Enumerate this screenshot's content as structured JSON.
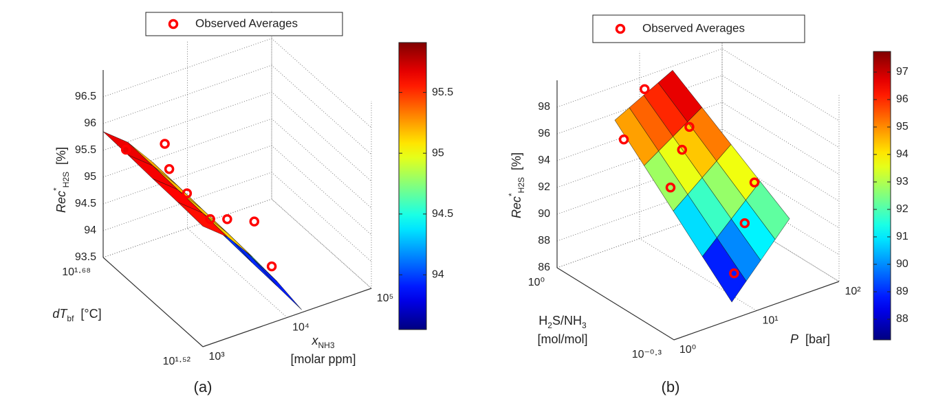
{
  "chart_data": [
    {
      "type": "surface3d",
      "panel_label": "(a)",
      "zlabel": [
        [
          {
            "text": "Rec",
            "style": "italic"
          },
          {
            "text": "*",
            "style": "sup"
          },
          {
            "text": "H2S",
            "style": "sub"
          },
          {
            "text": "[%]",
            "style": "unit"
          }
        ]
      ],
      "xlabel": [
        [
          {
            "text": "x",
            "style": "italic"
          },
          {
            "text": "NH3",
            "style": "sub"
          }
        ],
        [
          {
            "text": "[molar ppm]",
            "style": "normal"
          }
        ]
      ],
      "ylabel": [
        [
          {
            "text": "dT",
            "style": "italic"
          },
          {
            "text": "bf",
            "style": "sub"
          },
          {
            "text": "[°C]",
            "style": "unit"
          }
        ]
      ],
      "xscale": "log",
      "yscale": "log",
      "xlim": [
        1000,
        100000
      ],
      "xticks": [
        {
          "value": 1000,
          "label": "10³"
        },
        {
          "value": 10000,
          "label": "10⁴"
        },
        {
          "value": 100000,
          "label": "10⁵"
        }
      ],
      "ylim": [
        33.11,
        47.86
      ],
      "yticks": [
        {
          "value": 33.11,
          "label": "10¹·⁵²"
        },
        {
          "value": 47.86,
          "label": "10¹·⁶⁸"
        }
      ],
      "zlim": [
        93.5,
        97
      ],
      "zticks": [
        93.5,
        94,
        94.5,
        95,
        95.5,
        96,
        96.5
      ],
      "clim": [
        93.55,
        95.91
      ],
      "cticks": [
        94,
        94.5,
        95,
        95.5
      ],
      "colormap": "jet",
      "surface": {
        "x": [
          1000,
          1965,
          3860,
          7585,
          14900
        ],
        "y": [
          33.11,
          36.31,
          39.81,
          43.65,
          47.86
        ],
        "z": [
          [
            95.75,
            95.39,
            94.86,
            94.24,
            93.55
          ],
          [
            95.78,
            95.42,
            94.89,
            94.27,
            93.58
          ],
          [
            95.8,
            95.44,
            94.91,
            94.29,
            93.6
          ],
          [
            95.83,
            95.47,
            94.94,
            94.32,
            93.63
          ],
          [
            95.85,
            95.49,
            94.96,
            94.34,
            93.65
          ]
        ]
      },
      "series": [
        {
          "name": "Observed Averages",
          "color": "#ff0000",
          "x": [
            1413,
            2399,
            1556,
            1472,
            2089,
            7586,
            36308,
            11220
          ],
          "y": [
            46.1,
            42.9,
            39.8,
            37.0,
            35.6,
            39.8,
            44.5,
            35.6
          ],
          "z": [
            95.6,
            95.91,
            95.88,
            95.77,
            95.38,
            94.57,
            93.65,
            94.1
          ]
        }
      ]
    },
    {
      "type": "surface3d",
      "panel_label": "(b)",
      "zlabel": [
        [
          {
            "text": "Rec",
            "style": "italic"
          },
          {
            "text": "*",
            "style": "sup"
          },
          {
            "text": "H2S",
            "style": "sub"
          },
          {
            "text": "[%]",
            "style": "unit"
          }
        ]
      ],
      "xlabel": [
        [
          {
            "text": "P",
            "style": "italic"
          },
          {
            "text": "[bar]",
            "style": "unit"
          }
        ]
      ],
      "ylabel": [
        [
          {
            "text": "H",
            "style": "normal"
          },
          {
            "text": "2",
            "style": "sub"
          },
          {
            "text": "S/NH",
            "style": "normal"
          },
          {
            "text": "3",
            "style": "sub"
          }
        ],
        [
          {
            "text": "[mol/mol]",
            "style": "normal"
          }
        ]
      ],
      "xscale": "log",
      "yscale": "log",
      "xlim": [
        1,
        100
      ],
      "xticks": [
        {
          "value": 1,
          "label": "10⁰"
        },
        {
          "value": 10,
          "label": "10¹"
        },
        {
          "value": 100,
          "label": "10²"
        }
      ],
      "ylim": [
        0.5012,
        1
      ],
      "yticks": [
        {
          "value": 0.5012,
          "label": "10⁻⁰·³"
        },
        {
          "value": 1,
          "label": "10⁰"
        }
      ],
      "zlim": [
        86,
        100
      ],
      "zticks": [
        86,
        88,
        90,
        92,
        94,
        96,
        98
      ],
      "clim": [
        87.25,
        97.75
      ],
      "cticks": [
        88,
        89,
        90,
        91,
        92,
        93,
        94,
        95,
        96,
        97
      ],
      "colormap": "jet",
      "surface": {
        "x": [
          5.01,
          7.5,
          11.22,
          16.79,
          25.12
        ],
        "y": [
          0.501,
          0.596,
          0.708,
          0.841,
          1
        ],
        "z": [
          [
            87.3,
            88.48,
            89.65,
            90.83,
            92.0
          ],
          [
            89.35,
            90.37,
            91.39,
            92.41,
            93.43
          ],
          [
            91.4,
            92.26,
            93.13,
            93.99,
            94.85
          ],
          [
            93.45,
            94.16,
            94.86,
            95.57,
            96.28
          ],
          [
            95.5,
            96.05,
            96.6,
            97.15,
            97.7
          ]
        ]
      },
      "series": [
        {
          "name": "Observed Averages",
          "color": "#ff0000",
          "x": [
            4.64,
            11.5,
            20.9,
            12.3,
            4.64,
            29.5,
            16.3,
            6.9
          ],
          "y": [
            0.933,
            1,
            0.871,
            0.813,
            0.708,
            0.638,
            0.596,
            0.529
          ],
          "z": [
            94.67,
            97.03,
            94.72,
            94.05,
            93.23,
            92.67,
            90.72,
            88.72
          ]
        }
      ]
    }
  ]
}
